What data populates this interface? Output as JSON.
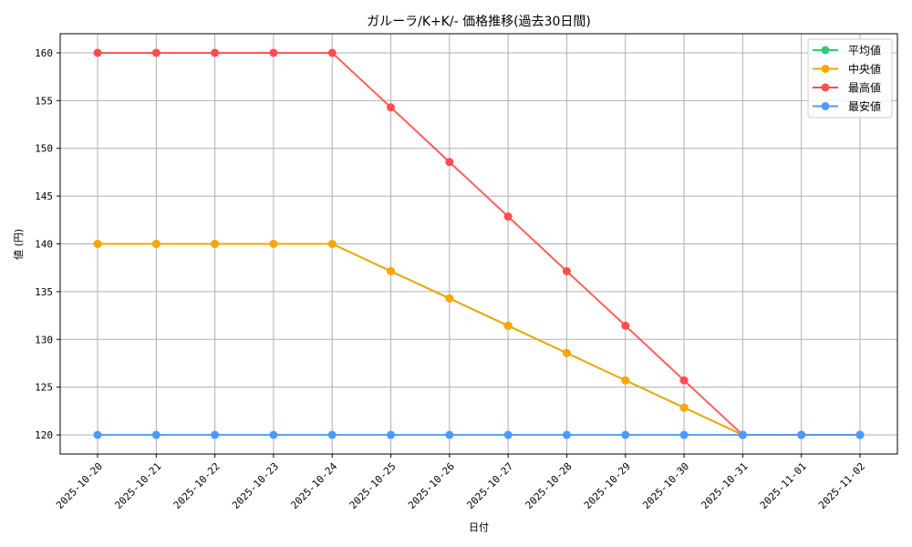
{
  "chart_data": {
    "type": "line",
    "title": "ガルーラ/K+K/- 価格推移(過去30日間)",
    "xlabel": "日付",
    "ylabel": "値 (円)",
    "ylim": [
      118,
      162
    ],
    "yticks": [
      120,
      125,
      130,
      135,
      140,
      145,
      150,
      155,
      160
    ],
    "grid": true,
    "legend_position": "upper right",
    "x": [
      "2025-10-20",
      "2025-10-21",
      "2025-10-22",
      "2025-10-23",
      "2025-10-24",
      "2025-10-25",
      "2025-10-26",
      "2025-10-27",
      "2025-10-28",
      "2025-10-29",
      "2025-10-30",
      "2025-10-31",
      "2025-11-01",
      "2025-11-02"
    ],
    "series": [
      {
        "name": "平均値",
        "color": "#2ecc71",
        "values": [
          140,
          140,
          140,
          140,
          140,
          137.14,
          134.29,
          131.43,
          128.57,
          125.71,
          122.86,
          120,
          120,
          120
        ]
      },
      {
        "name": "中央値",
        "color": "#ffa500",
        "values": [
          140,
          140,
          140,
          140,
          140,
          137.14,
          134.29,
          131.43,
          128.57,
          125.71,
          122.86,
          120,
          120,
          120
        ]
      },
      {
        "name": "最高値",
        "color": "#ff4d4d",
        "values": [
          160,
          160,
          160,
          160,
          160,
          154.29,
          148.57,
          142.86,
          137.14,
          131.43,
          125.71,
          120,
          120,
          120
        ]
      },
      {
        "name": "最安値",
        "color": "#4d9aff",
        "values": [
          120,
          120,
          120,
          120,
          120,
          120,
          120,
          120,
          120,
          120,
          120,
          120,
          120,
          120
        ]
      }
    ]
  }
}
